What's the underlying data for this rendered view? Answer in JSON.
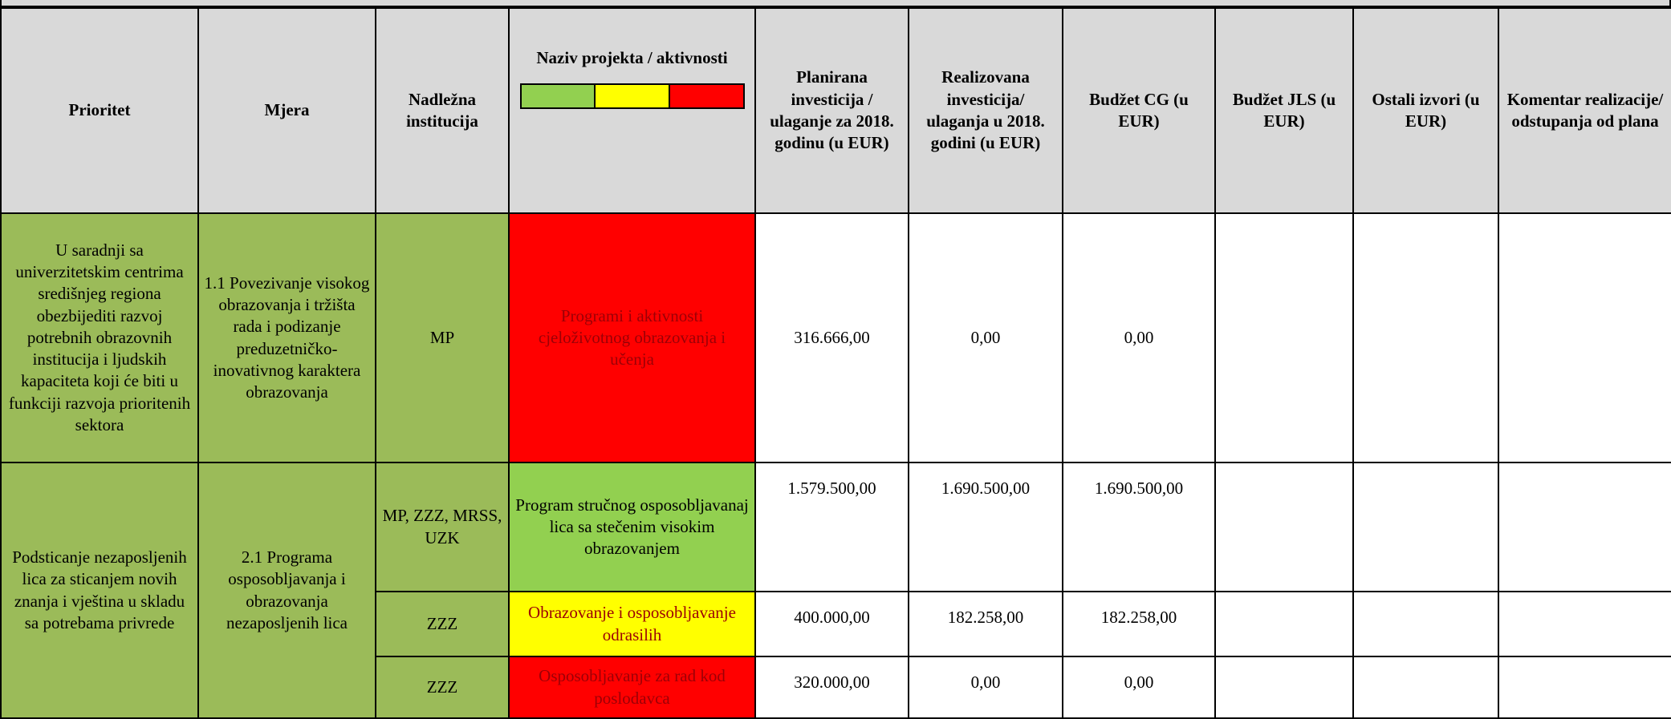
{
  "table": {
    "columns": [
      "Prioritet",
      "Mjera",
      "Nadležna institucija",
      "Naziv projekta / aktivnosti",
      "Planirana investicija / ulaganje za 2018. godinu (u EUR)",
      "Realizovana investicija/ ulaganja u 2018. godini (u EUR)",
      "Budžet CG (u EUR)",
      "Budžet JLS (u EUR)",
      "Ostali izvori (u EUR)",
      "Komentar realizacije/ odstupanja od plana"
    ],
    "groups": [
      {
        "prioritet": "U saradnji sa univerzitetskim centrima središnjeg regiona obezbijediti razvoj potrebnih obrazovnih institucija i ljudskih kapaciteta koji će biti u funkciji razvoja prioritenih sektora",
        "mjera": "1.1 Povezivanje visokog obrazovanja i tržišta rada i podizanje preduzetničko-inovativnog karaktera obrazovanja",
        "projects": [
          {
            "institucija": "MP",
            "naziv": "Programi i aktivnosti cjeloživotnog obrazovanja i učenja",
            "color": "#ff0000",
            "planirano": "316.666,00",
            "realizovano": "0,00",
            "budzet_cg": "0,00"
          }
        ]
      },
      {
        "prioritet": "Podsticanje nezaposljenih lica za sticanjem novih znanja i vještina u skladu sa potrebama privrede",
        "mjera": "2.1 Programa osposobljavanja i obrazovanja nezaposljenih lica",
        "projects": [
          {
            "institucija": "MP, ZZZ, MRSS, UZK",
            "naziv": "Program stručnog osposobljavanaj lica sa stečenim visokim obrazovanjem",
            "color": "#92d050",
            "planirano": "1.579.500,00",
            "realizovano": "1.690.500,00",
            "budzet_cg": "1.690.500,00"
          },
          {
            "institucija": "ZZZ",
            "naziv": "Obrazovanje i osposobljavanje odrasilih",
            "color": "#ffff00",
            "planirano": "400.000,00",
            "realizovano": "182.258,00",
            "budzet_cg": "182.258,00"
          },
          {
            "institucija": "ZZZ",
            "naziv": "Osposobljavanje za rad kod poslodavca",
            "color": "#ff0000",
            "planirano": "320.000,00",
            "realizovano": "0,00",
            "budzet_cg": "0,00"
          }
        ]
      }
    ]
  }
}
